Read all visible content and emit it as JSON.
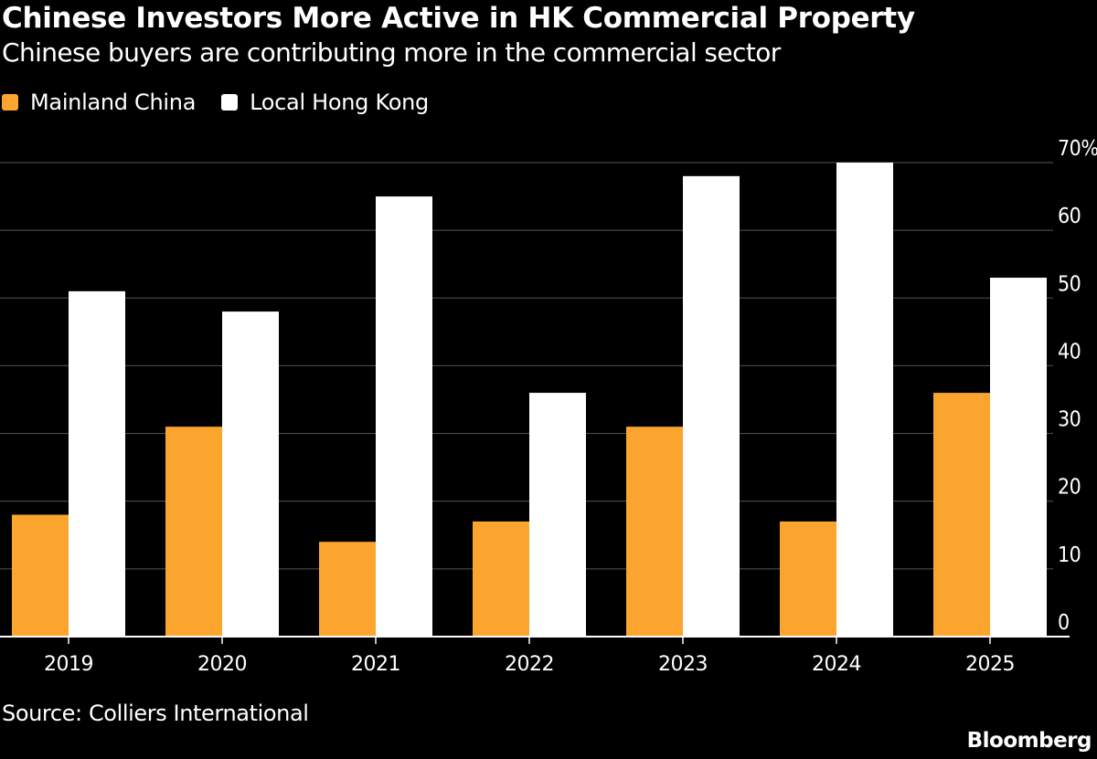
{
  "header": {
    "title": "Chinese Investors More Active in HK Commercial Property",
    "subtitle": "Chinese buyers are contributing more in the commercial sector"
  },
  "footer": {
    "source": "Source: Colliers International",
    "brand": "Bloomberg"
  },
  "colors": {
    "background": "#000000",
    "mainland": "#fba42e",
    "local": "#ffffff",
    "grid": "#555555",
    "axis": "#ffffff",
    "text": "#ffffff"
  },
  "chart_data": {
    "type": "bar",
    "title": "Chinese Investors More Active in HK Commercial Property",
    "subtitle": "Chinese buyers are contributing more in the commercial sector",
    "categories": [
      "2019",
      "2020",
      "2021",
      "2022",
      "2023",
      "2024",
      "2025"
    ],
    "series": [
      {
        "name": "Mainland China",
        "color": "#fba42e",
        "values": [
          18,
          31,
          14,
          17,
          31,
          17,
          36
        ]
      },
      {
        "name": "Local Hong Kong",
        "color": "#ffffff",
        "values": [
          51,
          48,
          65,
          36,
          68,
          70,
          53
        ]
      }
    ],
    "xlabel": "",
    "ylabel": "",
    "ylim": [
      0,
      70
    ],
    "yticks": [
      0,
      10,
      20,
      30,
      40,
      50,
      60,
      70
    ],
    "ytick_labels": [
      "0",
      "10",
      "20",
      "30",
      "40",
      "50",
      "60",
      "70%"
    ],
    "y_axis_side": "right",
    "grid": true,
    "legend": "top-left"
  }
}
